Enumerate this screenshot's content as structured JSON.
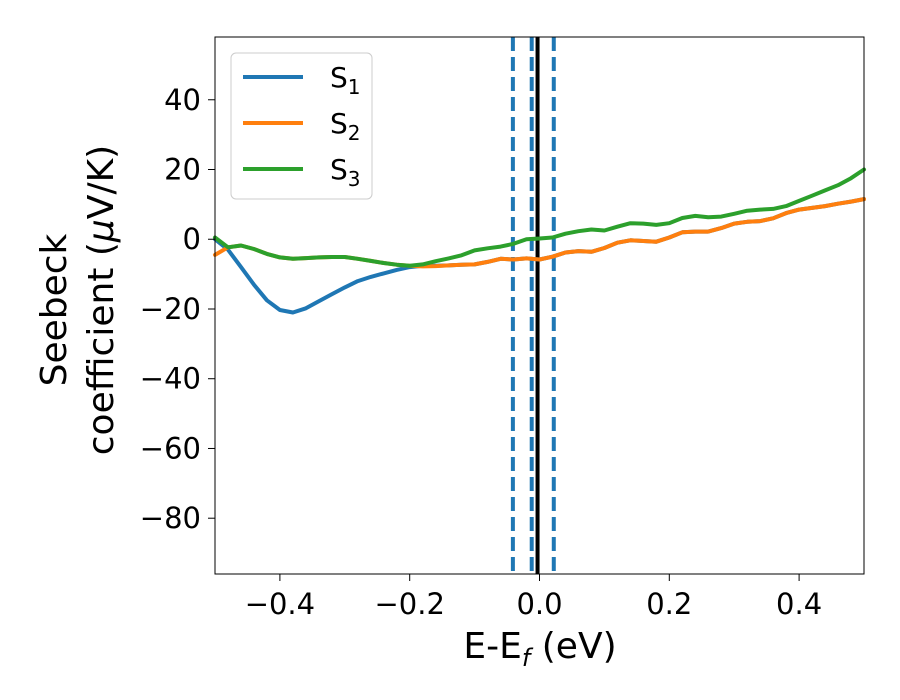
{
  "chart_data": {
    "type": "line",
    "xlabel": {
      "main": "E-E",
      "sub": "f",
      "tail": " (eV)"
    },
    "ylabel": {
      "line1": "Seebeck",
      "line2_pre": "coefficient  (",
      "line2_mu": "μ",
      "line2_post": "V/K)"
    },
    "xlim": [
      -0.5,
      0.5
    ],
    "ylim": [
      -96,
      58
    ],
    "xticks": [
      -0.4,
      -0.2,
      0.0,
      0.2,
      0.4
    ],
    "xtick_labels": [
      "−0.4",
      "−0.2",
      "0.0",
      "0.2",
      "0.4"
    ],
    "yticks": [
      -80,
      -60,
      -40,
      -20,
      0,
      20,
      40
    ],
    "ytick_labels": [
      "−80",
      "−60",
      "−40",
      "−20",
      "0",
      "20",
      "40"
    ],
    "grid": false,
    "legend_position": "top-left",
    "series": [
      {
        "name": "S",
        "sub": "1",
        "color": "#1f77b4",
        "x": [
          -0.5,
          -0.48,
          -0.46,
          -0.44,
          -0.42,
          -0.4,
          -0.38,
          -0.36,
          -0.34,
          -0.32,
          -0.3,
          -0.28,
          -0.26,
          -0.24,
          -0.22,
          -0.2,
          -0.18,
          -0.16,
          -0.14,
          -0.12,
          -0.1,
          -0.08,
          -0.06,
          -0.04,
          -0.02,
          0.0,
          0.02,
          0.04,
          0.06,
          0.08,
          0.1,
          0.12,
          0.14,
          0.16,
          0.18,
          0.2,
          0.22,
          0.24,
          0.26,
          0.28,
          0.3,
          0.32,
          0.34,
          0.36,
          0.38,
          0.4,
          0.42,
          0.44,
          0.46,
          0.48,
          0.5
        ],
        "y": [
          0,
          -3,
          -8,
          -13,
          -17.5,
          -20.3,
          -21,
          -19.8,
          -17.8,
          -15.8,
          -13.8,
          -12,
          -10.8,
          -9.8,
          -8.8,
          -8,
          -7.6,
          -7.6,
          -7.5,
          -7.3,
          -7.2,
          -6.5,
          -5.6,
          -5.8,
          -5.5,
          -5.8,
          -5,
          -3.8,
          -3.4,
          -3.6,
          -2.5,
          -1,
          -0.3,
          -0.5,
          -0.7,
          0.5,
          2,
          2.2,
          2.2,
          3.2,
          4.5,
          5,
          5.2,
          6,
          7.5,
          8.5,
          9,
          9.5,
          10.2,
          10.8,
          11.5
        ]
      },
      {
        "name": "S",
        "sub": "2",
        "color": "#ff7f0e",
        "x": [
          -0.5,
          -0.48,
          -0.46,
          -0.44,
          -0.42,
          -0.4,
          -0.38,
          -0.36,
          -0.34,
          -0.32,
          -0.3,
          -0.28,
          -0.26,
          -0.24,
          -0.22,
          -0.2,
          -0.18,
          -0.16,
          -0.14,
          -0.12,
          -0.1,
          -0.08,
          -0.06,
          -0.04,
          -0.02,
          0.0,
          0.02,
          0.04,
          0.06,
          0.08,
          0.1,
          0.12,
          0.14,
          0.16,
          0.18,
          0.2,
          0.22,
          0.24,
          0.26,
          0.28,
          0.3,
          0.32,
          0.34,
          0.36,
          0.38,
          0.4,
          0.42,
          0.44,
          0.46,
          0.48,
          0.5
        ],
        "y": [
          -4.5,
          -2.3,
          -1.8,
          -2.8,
          -4.2,
          -5.2,
          -5.6,
          -5.4,
          -5.2,
          -5.1,
          -5.1,
          -5.6,
          -6.2,
          -6.8,
          -7.3,
          -7.6,
          -7.8,
          -7.7,
          -7.5,
          -7.3,
          -7.2,
          -6.5,
          -5.6,
          -5.8,
          -5.5,
          -5.8,
          -5,
          -3.8,
          -3.4,
          -3.6,
          -2.5,
          -1,
          -0.3,
          -0.5,
          -0.7,
          0.5,
          2,
          2.2,
          2.2,
          3.2,
          4.5,
          5,
          5.2,
          6,
          7.5,
          8.5,
          9,
          9.5,
          10.2,
          10.8,
          11.5
        ]
      },
      {
        "name": "S",
        "sub": "3",
        "color": "#2ca02c",
        "x": [
          -0.5,
          -0.48,
          -0.46,
          -0.44,
          -0.42,
          -0.4,
          -0.38,
          -0.36,
          -0.34,
          -0.32,
          -0.3,
          -0.28,
          -0.26,
          -0.24,
          -0.22,
          -0.2,
          -0.18,
          -0.16,
          -0.14,
          -0.12,
          -0.1,
          -0.08,
          -0.06,
          -0.04,
          -0.02,
          0.0,
          0.02,
          0.04,
          0.06,
          0.08,
          0.1,
          0.12,
          0.14,
          0.16,
          0.18,
          0.2,
          0.22,
          0.24,
          0.26,
          0.28,
          0.3,
          0.32,
          0.34,
          0.36,
          0.38,
          0.4,
          0.42,
          0.44,
          0.46,
          0.48,
          0.5
        ],
        "y": [
          0.5,
          -2.3,
          -1.8,
          -2.8,
          -4.2,
          -5.2,
          -5.6,
          -5.4,
          -5.2,
          -5.1,
          -5.1,
          -5.6,
          -6.2,
          -6.8,
          -7.3,
          -7.6,
          -7.2,
          -6.3,
          -5.5,
          -4.6,
          -3.2,
          -2.6,
          -2.1,
          -1.3,
          0,
          0.2,
          0.5,
          1.6,
          2.3,
          2.8,
          2.5,
          3.6,
          4.6,
          4.5,
          4.1,
          4.6,
          6.1,
          6.7,
          6.3,
          6.5,
          7.3,
          8.2,
          8.5,
          8.7,
          9.5,
          11,
          12.5,
          14,
          15.5,
          17.5,
          20
        ]
      }
    ],
    "vlines": [
      {
        "x": -0.041,
        "style": "dashed",
        "color": "#1f77b4"
      },
      {
        "x": -0.012,
        "style": "dashed",
        "color": "#1f77b4"
      },
      {
        "x": 0.022,
        "style": "dashed",
        "color": "#1f77b4"
      },
      {
        "x": -0.003,
        "style": "solid",
        "color": "#000000"
      }
    ]
  }
}
